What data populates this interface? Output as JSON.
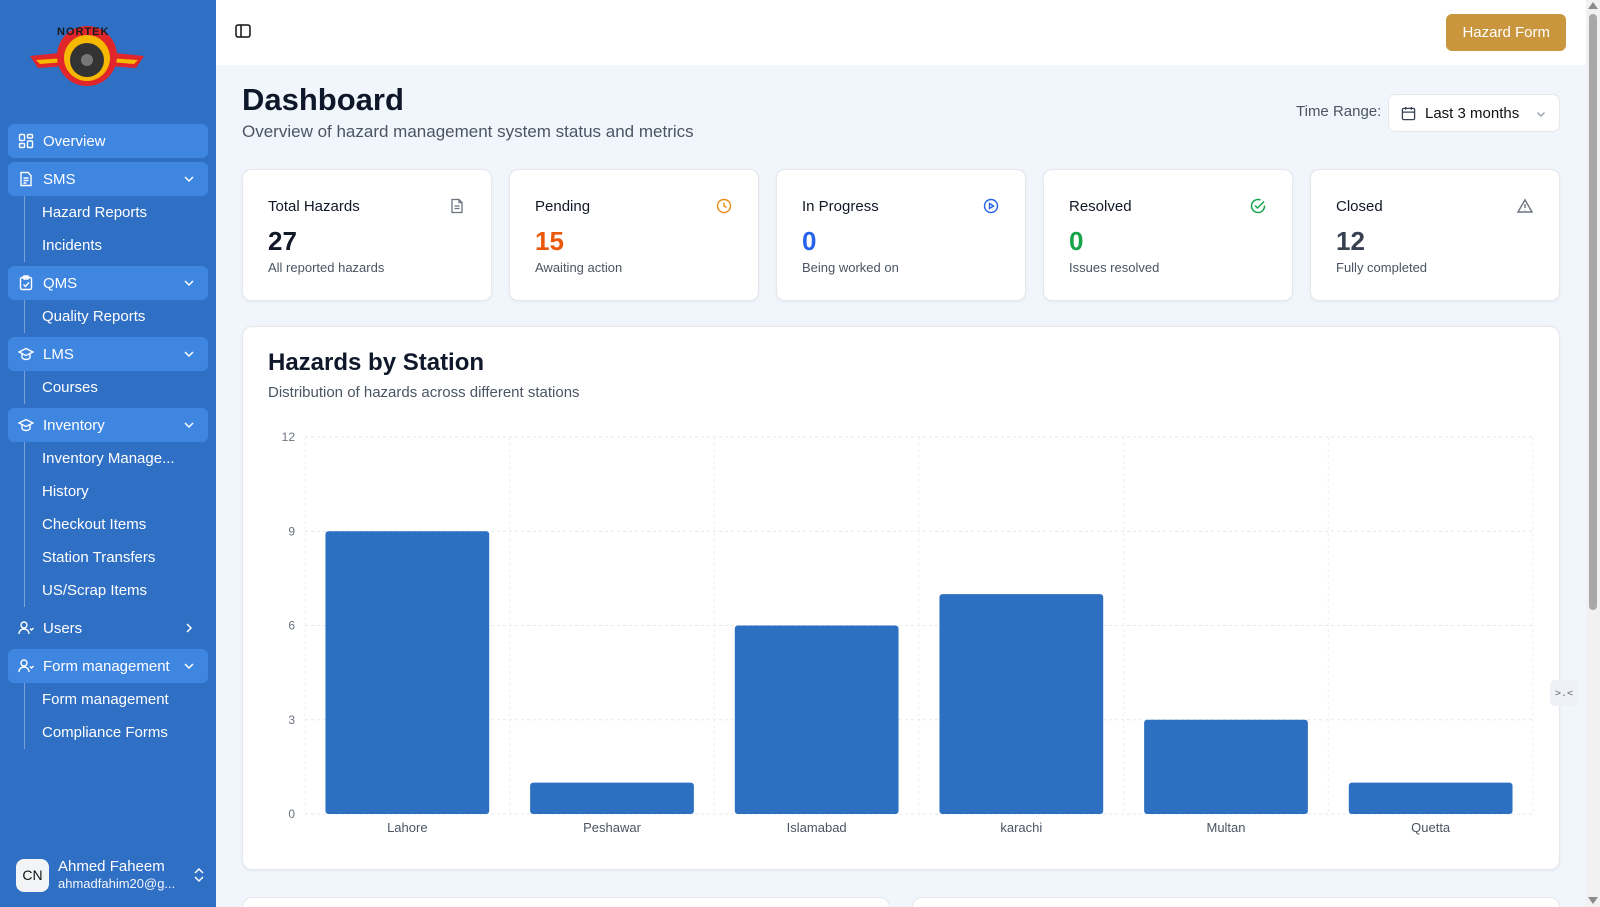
{
  "sidebar": {
    "logo_text": "NORTEK",
    "groups": [
      {
        "label": "Overview",
        "icon": "grid-icon",
        "expanded": false,
        "items": []
      },
      {
        "label": "SMS",
        "icon": "document-icon",
        "expanded": true,
        "items": [
          "Hazard Reports",
          "Incidents"
        ]
      },
      {
        "label": "QMS",
        "icon": "clipboard-check-icon",
        "expanded": true,
        "items": [
          "Quality Reports"
        ]
      },
      {
        "label": "LMS",
        "icon": "graduation-cap-icon",
        "expanded": true,
        "items": [
          "Courses"
        ]
      },
      {
        "label": "Inventory",
        "icon": "graduation-cap-icon",
        "expanded": true,
        "items": [
          "Inventory Manage...",
          "History",
          "Checkout Items",
          "Station Transfers",
          "US/Scrap Items"
        ]
      },
      {
        "label": "Users",
        "icon": "users-icon",
        "expanded": false,
        "items": []
      },
      {
        "label": "Form management",
        "icon": "users-icon",
        "expanded": true,
        "items": [
          "Form management",
          "Compliance Forms"
        ]
      }
    ],
    "user": {
      "initials": "CN",
      "name": "Ahmed Faheem",
      "email": "ahmadfahim20@g..."
    }
  },
  "header": {
    "hazard_form_label": "Hazard Form"
  },
  "page": {
    "title": "Dashboard",
    "subtitle": "Overview of hazard management system status and metrics",
    "time_range_label": "Time Range:",
    "time_range_value": "Last 3 months"
  },
  "stats": [
    {
      "title": "Total Hazards",
      "value": "27",
      "desc": "All reported hazards",
      "color": "#111827",
      "icon": "file-icon",
      "icon_color": "#6b7280"
    },
    {
      "title": "Pending",
      "value": "15",
      "desc": "Awaiting action",
      "color": "#ea580c",
      "icon": "clock-icon",
      "icon_color": "#ea8c1a"
    },
    {
      "title": "In Progress",
      "value": "0",
      "desc": "Being worked on",
      "color": "#2563eb",
      "icon": "play-circle-icon",
      "icon_color": "#2563eb"
    },
    {
      "title": "Resolved",
      "value": "0",
      "desc": "Issues resolved",
      "color": "#16a34a",
      "icon": "check-circle-icon",
      "icon_color": "#16a34a"
    },
    {
      "title": "Closed",
      "value": "12",
      "desc": "Fully completed",
      "color": "#374151",
      "icon": "alert-triangle-icon",
      "icon_color": "#6b7280"
    }
  ],
  "chart_panel": {
    "title": "Hazards by Station",
    "subtitle": "Distribution of hazards across different stations"
  },
  "chart_data": {
    "type": "bar",
    "title": "Hazards by Station",
    "categories": [
      "Lahore",
      "Peshawar",
      "Islamabad",
      "karachi",
      "Multan",
      "Quetta"
    ],
    "values": [
      9,
      1,
      6,
      7,
      3,
      1
    ],
    "ylim": [
      0,
      12
    ],
    "yticks": [
      0,
      3,
      6,
      9,
      12
    ],
    "grid": true,
    "bar_color": "#2d6fc0"
  },
  "colors": {
    "sidebar": "#2f6fc4",
    "accent": "#c9963e"
  }
}
